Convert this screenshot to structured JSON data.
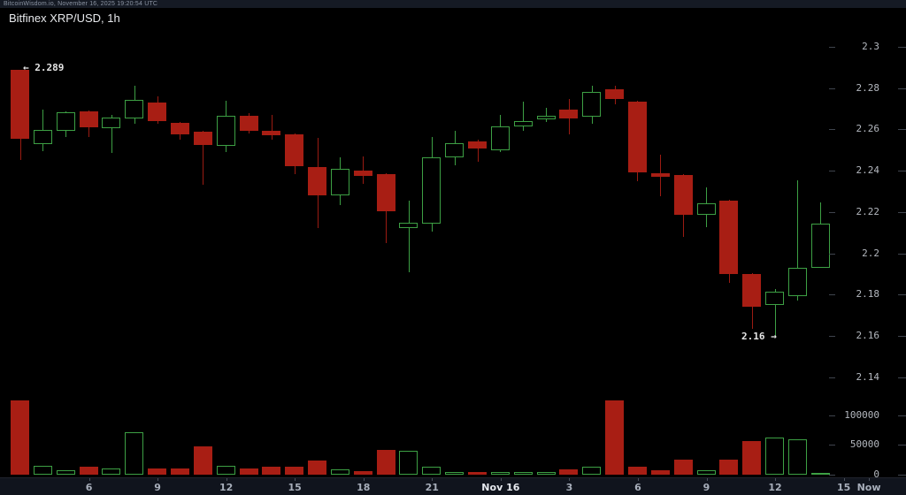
{
  "header": {
    "status_line": "BitcoinWisdom.io, November 16, 2025 19:20:54 UTC"
  },
  "chart": {
    "title": "Bitfinex XRP/USD, 1h"
  },
  "annotations": {
    "open_price_label": "← 2.289",
    "low_price_label": "2.16 →"
  },
  "colors": {
    "background": "#000000",
    "up": "#3da044",
    "down": "#a81e14",
    "axis_text": "#b4b8bf",
    "strip_background": "#151a24"
  },
  "chart_data": {
    "type": "candlestick_with_volume",
    "title": "Bitfinex XRP/USD, 1h",
    "exchange": "Bitfinex",
    "pair": "XRP/USD",
    "interval": "1h",
    "legend_position": "none",
    "grid": false,
    "price_axis": {
      "side": "right",
      "range": [
        2.133,
        2.302
      ],
      "ticks": [
        {
          "value": 2.3,
          "label": "2.3"
        },
        {
          "value": 2.28,
          "label": "2.28"
        },
        {
          "value": 2.26,
          "label": "2.26"
        },
        {
          "value": 2.24,
          "label": "2.24"
        },
        {
          "value": 2.22,
          "label": "2.22"
        },
        {
          "value": 2.2,
          "label": "2.2"
        },
        {
          "value": 2.18,
          "label": "2.18"
        },
        {
          "value": 2.16,
          "label": "2.16"
        },
        {
          "value": 2.14,
          "label": "2.14"
        }
      ]
    },
    "volume_axis": {
      "side": "right",
      "range": [
        0,
        130000
      ],
      "ticks": [
        {
          "value": 100000,
          "label": "100000"
        },
        {
          "value": 50000,
          "label": "50000"
        },
        {
          "value": 0,
          "label": "0"
        }
      ]
    },
    "time_axis": {
      "ticks": [
        {
          "label": "6",
          "k": 3,
          "emph": false
        },
        {
          "label": "9",
          "k": 6,
          "emph": false
        },
        {
          "label": "12",
          "k": 9,
          "emph": false
        },
        {
          "label": "15",
          "k": 12,
          "emph": false
        },
        {
          "label": "18",
          "k": 15,
          "emph": false
        },
        {
          "label": "21",
          "k": 18,
          "emph": false
        },
        {
          "label": "Nov 16",
          "k": 21,
          "emph": true
        },
        {
          "label": "3",
          "k": 24,
          "emph": false
        },
        {
          "label": "6",
          "k": 27,
          "emph": false
        },
        {
          "label": "9",
          "k": 30,
          "emph": false
        },
        {
          "label": "12",
          "k": 33,
          "emph": false
        },
        {
          "label": "15",
          "k": 36,
          "emph": false
        },
        {
          "label": "Now",
          "k": 37.1,
          "emph": false
        }
      ]
    },
    "candles": [
      {
        "time": "Nov 15 03:00",
        "open": 2.289,
        "high": 2.289,
        "low": 2.245,
        "close": 2.2555,
        "volume": 125000
      },
      {
        "time": "Nov 15 04:00",
        "open": 2.253,
        "high": 2.2696,
        "low": 2.2495,
        "close": 2.2598,
        "volume": 15000
      },
      {
        "time": "Nov 15 05:00",
        "open": 2.2593,
        "high": 2.2688,
        "low": 2.2563,
        "close": 2.2683,
        "volume": 8000
      },
      {
        "time": "Nov 15 06:00",
        "open": 2.2688,
        "high": 2.2692,
        "low": 2.2563,
        "close": 2.261,
        "volume": 13000
      },
      {
        "time": "Nov 15 07:00",
        "open": 2.2606,
        "high": 2.267,
        "low": 2.2486,
        "close": 2.2658,
        "volume": 10000
      },
      {
        "time": "Nov 15 08:00",
        "open": 2.2653,
        "high": 2.2812,
        "low": 2.2628,
        "close": 2.2743,
        "volume": 72000
      },
      {
        "time": "Nov 15 09:00",
        "open": 2.273,
        "high": 2.276,
        "low": 2.2628,
        "close": 2.264,
        "volume": 10000
      },
      {
        "time": "Nov 15 10:00",
        "open": 2.2632,
        "high": 2.2636,
        "low": 2.255,
        "close": 2.2576,
        "volume": 10000
      },
      {
        "time": "Nov 15 11:00",
        "open": 2.2589,
        "high": 2.2593,
        "low": 2.2332,
        "close": 2.2525,
        "volume": 48000
      },
      {
        "time": "Nov 15 12:00",
        "open": 2.252,
        "high": 2.2739,
        "low": 2.249,
        "close": 2.2666,
        "volume": 15000
      },
      {
        "time": "Nov 15 13:00",
        "open": 2.2666,
        "high": 2.268,
        "low": 2.258,
        "close": 2.2593,
        "volume": 10000
      },
      {
        "time": "Nov 15 14:00",
        "open": 2.2593,
        "high": 2.267,
        "low": 2.255,
        "close": 2.2572,
        "volume": 13000
      },
      {
        "time": "Nov 15 15:00",
        "open": 2.2576,
        "high": 2.258,
        "low": 2.2384,
        "close": 2.2422,
        "volume": 13000
      },
      {
        "time": "Nov 15 16:00",
        "open": 2.2418,
        "high": 2.2559,
        "low": 2.2123,
        "close": 2.2281,
        "volume": 24000
      },
      {
        "time": "Nov 15 17:00",
        "open": 2.2281,
        "high": 2.2465,
        "low": 2.2234,
        "close": 2.241,
        "volume": 9000
      },
      {
        "time": "Nov 15 18:00",
        "open": 2.2401,
        "high": 2.2469,
        "low": 2.2337,
        "close": 2.2375,
        "volume": 6000
      },
      {
        "time": "Nov 15 19:00",
        "open": 2.2384,
        "high": 2.2388,
        "low": 2.205,
        "close": 2.2204,
        "volume": 42000
      },
      {
        "time": "Nov 15 20:00",
        "open": 2.2123,
        "high": 2.2255,
        "low": 2.191,
        "close": 2.2148,
        "volume": 40000
      },
      {
        "time": "Nov 15 21:00",
        "open": 2.2144,
        "high": 2.2563,
        "low": 2.2106,
        "close": 2.2465,
        "volume": 13000
      },
      {
        "time": "Nov 15 22:00",
        "open": 2.2465,
        "high": 2.2593,
        "low": 2.2427,
        "close": 2.2534,
        "volume": 5000
      },
      {
        "time": "Nov 15 23:00",
        "open": 2.2542,
        "high": 2.255,
        "low": 2.2444,
        "close": 2.2508,
        "volume": 5000
      },
      {
        "time": "Nov 16 00:00",
        "open": 2.25,
        "high": 2.267,
        "low": 2.249,
        "close": 2.2615,
        "volume": 4000
      },
      {
        "time": "Nov 16 01:00",
        "open": 2.2615,
        "high": 2.2735,
        "low": 2.2593,
        "close": 2.264,
        "volume": 4500
      },
      {
        "time": "Nov 16 02:00",
        "open": 2.2649,
        "high": 2.2705,
        "low": 2.2636,
        "close": 2.2666,
        "volume": 5000
      },
      {
        "time": "Nov 16 03:00",
        "open": 2.2696,
        "high": 2.2748,
        "low": 2.2576,
        "close": 2.2653,
        "volume": 9000
      },
      {
        "time": "Nov 16 04:00",
        "open": 2.2662,
        "high": 2.2812,
        "low": 2.2628,
        "close": 2.2782,
        "volume": 14000
      },
      {
        "time": "Nov 16 05:00",
        "open": 2.2795,
        "high": 2.2812,
        "low": 2.2722,
        "close": 2.2748,
        "volume": 125000
      },
      {
        "time": "Nov 16 06:00",
        "open": 2.2735,
        "high": 2.2739,
        "low": 2.2349,
        "close": 2.2392,
        "volume": 14000
      },
      {
        "time": "Nov 16 07:00",
        "open": 2.2388,
        "high": 2.2478,
        "low": 2.2277,
        "close": 2.2371,
        "volume": 8000
      },
      {
        "time": "Nov 16 08:00",
        "open": 2.238,
        "high": 2.2384,
        "low": 2.208,
        "close": 2.2187,
        "volume": 25000
      },
      {
        "time": "Nov 16 09:00",
        "open": 2.2187,
        "high": 2.232,
        "low": 2.2127,
        "close": 2.2243,
        "volume": 7000
      },
      {
        "time": "Nov 16 10:00",
        "open": 2.2255,
        "high": 2.2259,
        "low": 2.1857,
        "close": 2.19,
        "volume": 25000
      },
      {
        "time": "Nov 16 11:00",
        "open": 2.19,
        "high": 2.1904,
        "low": 2.1635,
        "close": 2.1742,
        "volume": 57000
      },
      {
        "time": "Nov 16 12:00",
        "open": 2.175,
        "high": 2.1827,
        "low": 2.16,
        "close": 2.1815,
        "volume": 62000
      },
      {
        "time": "Nov 16 13:00",
        "open": 2.1793,
        "high": 2.2354,
        "low": 2.1772,
        "close": 2.193,
        "volume": 60000
      },
      {
        "time": "Nov 16 14:00",
        "open": 2.193,
        "high": 2.2247,
        "low": 2.193,
        "close": 2.2144,
        "volume": 2000
      }
    ]
  }
}
